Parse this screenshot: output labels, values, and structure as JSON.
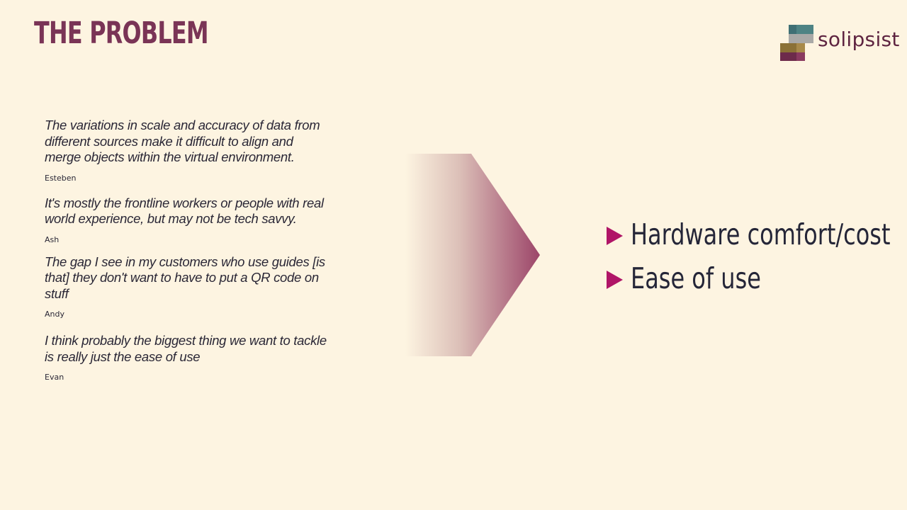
{
  "slide": {
    "title": "THE PROBLEM"
  },
  "logo": {
    "text": "solipsist",
    "colors": [
      "#4e8384",
      "#a8a8a8",
      "#8b7136",
      "#6d2b4b"
    ]
  },
  "quotes": [
    {
      "text": "The variations in scale and accuracy of data from different sources make it difficult to align and merge objects within the virtual environment.",
      "author": "Esteben"
    },
    {
      "text": "It's mostly the frontline workers or people with real world experience, but may not be tech savvy.",
      "author": "Ash"
    },
    {
      "text": "The gap I  see in my customers who use guides [is that] they don't want to have to put a QR code on stuff",
      "author": "Andy"
    },
    {
      "text": "I think probably the biggest thing we want to tackle is really just the ease of use",
      "author": "Evan"
    }
  ],
  "bullets": [
    {
      "icon": "triangle-right-icon",
      "text": "Hardware comfort/cost"
    },
    {
      "icon": "triangle-right-icon",
      "text": "Ease of use"
    }
  ],
  "colors": {
    "background": "#fdf4e1",
    "title": "#7a3456",
    "accent": "#b01567",
    "arrow": "#9c4569",
    "text": "#252638"
  }
}
